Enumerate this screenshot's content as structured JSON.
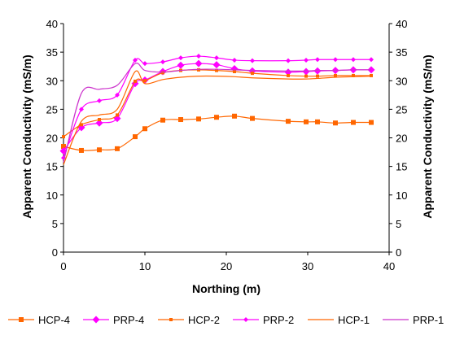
{
  "chart_data": {
    "type": "line",
    "title": "",
    "xlabel": "Northing (m)",
    "ylabel": "Apparent Conductivity (mS/m)",
    "ylabel_right": "Apparent Conductivity (mS/m)",
    "xlim": [
      0,
      40
    ],
    "ylim": [
      0,
      40
    ],
    "xticks": [
      "0",
      "10",
      "20",
      "30",
      "40"
    ],
    "yticks": [
      "0",
      "5",
      "10",
      "15",
      "20",
      "25",
      "30",
      "35",
      "40"
    ],
    "grid": false,
    "legend_position": "bottom",
    "series": [
      {
        "name": "HCP-4",
        "color": "#FF6600",
        "marker": "square",
        "x": [
          0,
          2.2,
          4.4,
          6.6,
          8.8,
          10,
          12.2,
          14.4,
          16.6,
          18.8,
          21,
          23.2,
          27.6,
          29.8,
          31.2,
          33.4,
          35.6,
          37.8
        ],
        "y": [
          18.5,
          17.8,
          17.9,
          18.1,
          20.2,
          21.6,
          23.1,
          23.2,
          23.3,
          23.6,
          23.8,
          23.4,
          22.9,
          22.8,
          22.8,
          22.6,
          22.7,
          22.7
        ]
      },
      {
        "name": "PRP-4",
        "color": "#FF00FF",
        "marker": "diamond",
        "x": [
          0,
          2.2,
          4.4,
          6.6,
          8.8,
          10,
          12.2,
          14.4,
          16.6,
          18.8,
          21,
          23.2,
          27.6,
          29.8,
          31.2,
          33.4,
          35.6,
          37.8
        ],
        "y": [
          17.7,
          21.8,
          22.6,
          23.4,
          29.5,
          30.1,
          31.6,
          32.7,
          33,
          32.8,
          32.1,
          31.7,
          31.5,
          31.6,
          31.7,
          31.8,
          31.9,
          31.9
        ]
      },
      {
        "name": "HCP-2",
        "color": "#FF6600",
        "marker": "small-square",
        "x": [
          0,
          2.2,
          4.4,
          6.6,
          8.8,
          10,
          12.2,
          14.4,
          16.6,
          18.8,
          21,
          23.2,
          27.6,
          29.8,
          31.2,
          33.4,
          35.6,
          37.8
        ],
        "y": [
          20.2,
          22.3,
          23.2,
          24,
          29.9,
          30,
          31.4,
          31.8,
          31.9,
          31.8,
          31.6,
          31.3,
          30.9,
          30.8,
          30.8,
          30.9,
          30.9,
          30.9
        ]
      },
      {
        "name": "PRP-2",
        "color": "#FF00FF",
        "marker": "small-diamond",
        "x": [
          0,
          2.2,
          4.4,
          6.6,
          8.8,
          10,
          12.2,
          14.4,
          16.6,
          18.8,
          21,
          23.2,
          27.6,
          29.8,
          31.2,
          33.4,
          35.6,
          37.8
        ],
        "y": [
          16.5,
          25,
          26.5,
          27.5,
          33.6,
          33,
          33.3,
          34,
          34.3,
          34,
          33.6,
          33.5,
          33.5,
          33.6,
          33.7,
          33.7,
          33.7,
          33.7
        ]
      },
      {
        "name": "HCP-1",
        "color": "#FF6600",
        "marker": "none",
        "x": [
          0,
          2.2,
          4.4,
          6.6,
          8.8,
          10,
          12.2,
          14.4,
          16.6,
          18.8,
          21,
          23.2,
          27.6,
          29.8,
          31.2,
          33.4,
          35.6,
          37.8
        ],
        "y": [
          15.3,
          22.9,
          24,
          25,
          31.6,
          29.5,
          30.2,
          30.6,
          30.8,
          30.8,
          30.7,
          30.5,
          30.3,
          30.3,
          30.4,
          30.6,
          30.7,
          30.8
        ]
      },
      {
        "name": "PRP-1",
        "color": "#CC33CC",
        "marker": "none",
        "x": [
          0,
          2.2,
          4.4,
          6.6,
          8.8,
          10,
          12.2,
          14.4,
          16.6,
          18.8,
          21,
          23.2,
          27.6,
          29.8,
          31.2,
          33.4,
          35.6,
          37.8
        ],
        "y": [
          15.7,
          27.8,
          28.5,
          29.2,
          33,
          31.8,
          31.5,
          31.8,
          32,
          32,
          31.9,
          31.8,
          31.7,
          31.7,
          31.8,
          31.8,
          31.9,
          31.9
        ]
      }
    ]
  }
}
